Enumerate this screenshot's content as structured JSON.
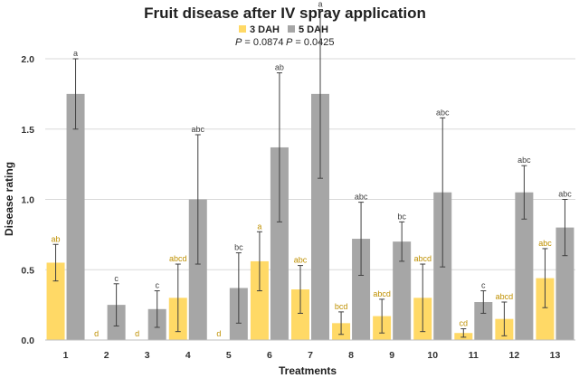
{
  "chart_data": {
    "type": "bar",
    "title": "Fruit disease after IV spray application",
    "xlabel": "Treatments",
    "ylabel": "Disease rating",
    "ylim": [
      0,
      2.0
    ],
    "yticks": [
      "0.0",
      "0.5",
      "1.0",
      "1.5",
      "2.0"
    ],
    "categories": [
      "1",
      "2",
      "3",
      "4",
      "5",
      "6",
      "7",
      "8",
      "9",
      "10",
      "11",
      "12",
      "13"
    ],
    "grid": true,
    "series": [
      {
        "name": "3 DAH",
        "color": "#FFD966",
        "letter_color": "#BF9000",
        "p_value_label": "P",
        "p_value_text": " = 0.0874",
        "values": [
          0.55,
          0,
          0,
          0.3,
          0,
          0.56,
          0.36,
          0.12,
          0.17,
          0.3,
          0.05,
          0.15,
          0.44
        ],
        "errors": [
          0.13,
          0,
          0,
          0.24,
          0,
          0.21,
          0.17,
          0.08,
          0.12,
          0.24,
          0.03,
          0.12,
          0.21
        ],
        "letters": [
          "ab",
          "d",
          "d",
          "abcd",
          "d",
          "a",
          "abc",
          "bcd",
          "abcd",
          "abcd",
          "cd",
          "abcd",
          "abc"
        ]
      },
      {
        "name": "5 DAH",
        "color": "#A6A6A6",
        "letter_color": "#404040",
        "p_value_label": "P",
        "p_value_text": " = 0.0425",
        "values": [
          1.75,
          0.25,
          0.22,
          1.0,
          0.37,
          1.37,
          1.75,
          0.72,
          0.7,
          1.05,
          0.27,
          1.05,
          0.8
        ],
        "errors": [
          0.25,
          0.15,
          0.13,
          0.46,
          0.25,
          0.53,
          0.6,
          0.26,
          0.14,
          0.53,
          0.08,
          0.19,
          0.2
        ],
        "letters": [
          "a",
          "c",
          "c",
          "abc",
          "bc",
          "ab",
          "a",
          "abc",
          "bc",
          "abc",
          "c",
          "abc",
          "abc"
        ]
      }
    ]
  }
}
